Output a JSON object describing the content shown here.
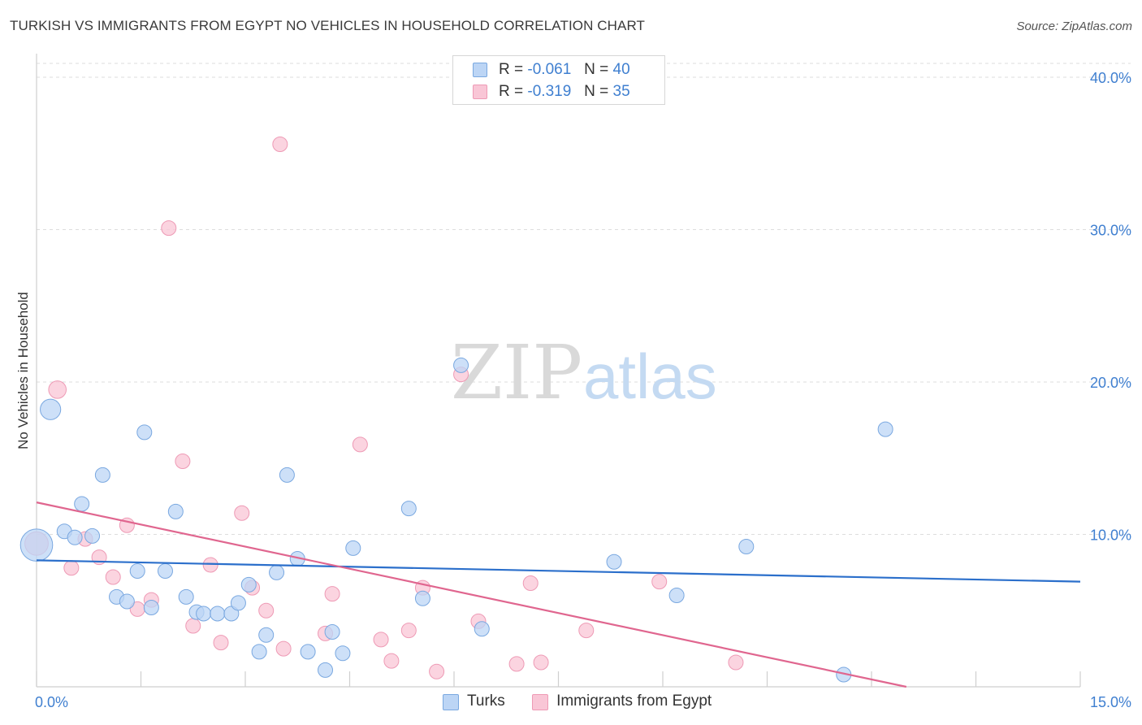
{
  "header": {
    "title": "TURKISH VS IMMIGRANTS FROM EGYPT NO VEHICLES IN HOUSEHOLD CORRELATION CHART",
    "source": "Source: ZipAtlas.com"
  },
  "watermark": {
    "zip": "ZIP",
    "atlas": "atlas"
  },
  "legend": {
    "r_label": "R =",
    "n_label": "N =",
    "entries": [
      {
        "r": "-0.061",
        "n": "40"
      },
      {
        "r": "-0.319",
        "n": "35"
      }
    ]
  },
  "colors": {
    "turks_fill": "#bcd5f5",
    "turks_stroke": "#7aa8e0",
    "turks_line": "#2b6fcb",
    "egypt_fill": "#f9c6d6",
    "egypt_stroke": "#ee9ab5",
    "egypt_line": "#e0668f",
    "tick_text": "#3f7fd0",
    "grid": "#dddddd"
  },
  "chart_data": {
    "type": "scatter",
    "title": "TURKISH VS IMMIGRANTS FROM EGYPT NO VEHICLES IN HOUSEHOLD CORRELATION CHART",
    "xlabel": "",
    "ylabel": "No Vehicles in Household",
    "xlim": [
      0,
      15
    ],
    "ylim": [
      0,
      40
    ],
    "x_tick_labels": [
      "0.0%",
      "15.0%"
    ],
    "y_ticks": [
      10,
      20,
      30,
      40
    ],
    "y_tick_labels": [
      "10.0%",
      "20.0%",
      "30.0%",
      "40.0%"
    ],
    "grid": true,
    "legend_position": "top-center",
    "series": [
      {
        "name": "Turks",
        "r": -0.061,
        "n": 40,
        "trend": [
          [
            0,
            8.3
          ],
          [
            15,
            6.9
          ]
        ],
        "points": [
          [
            0.0,
            9.3,
            2.2
          ],
          [
            0.2,
            18.2,
            1.4
          ],
          [
            0.4,
            10.2,
            1
          ],
          [
            0.55,
            9.8,
            1
          ],
          [
            0.65,
            12.0,
            1
          ],
          [
            0.8,
            9.9,
            1
          ],
          [
            0.95,
            13.9,
            1
          ],
          [
            1.15,
            5.9,
            1
          ],
          [
            1.3,
            5.6,
            1
          ],
          [
            1.45,
            7.6,
            1
          ],
          [
            1.55,
            16.7,
            1
          ],
          [
            1.65,
            5.2,
            1
          ],
          [
            1.85,
            7.6,
            1
          ],
          [
            2.0,
            11.5,
            1
          ],
          [
            2.15,
            5.9,
            1
          ],
          [
            2.3,
            4.9,
            1
          ],
          [
            2.4,
            4.8,
            1
          ],
          [
            2.6,
            4.8,
            1
          ],
          [
            2.8,
            4.8,
            1
          ],
          [
            2.9,
            5.5,
            1
          ],
          [
            3.05,
            6.7,
            1
          ],
          [
            3.2,
            2.3,
            1
          ],
          [
            3.3,
            3.4,
            1
          ],
          [
            3.45,
            7.5,
            1
          ],
          [
            3.6,
            13.9,
            1
          ],
          [
            3.75,
            8.4,
            1
          ],
          [
            3.9,
            2.3,
            1
          ],
          [
            4.15,
            1.1,
            1
          ],
          [
            4.25,
            3.6,
            1
          ],
          [
            4.4,
            2.2,
            1
          ],
          [
            4.55,
            9.1,
            1
          ],
          [
            5.35,
            11.7,
            1
          ],
          [
            5.55,
            5.8,
            1
          ],
          [
            6.1,
            21.1,
            1
          ],
          [
            6.4,
            3.8,
            1
          ],
          [
            8.3,
            8.2,
            1
          ],
          [
            9.2,
            6.0,
            1
          ],
          [
            10.2,
            9.2,
            1
          ],
          [
            12.2,
            16.9,
            1
          ],
          [
            11.6,
            0.8,
            1
          ]
        ]
      },
      {
        "name": "Immigrants from Egypt",
        "r": -0.319,
        "n": 35,
        "trend": [
          [
            0,
            12.1
          ],
          [
            12.5,
            0
          ]
        ],
        "points": [
          [
            0.0,
            9.4,
            1.6
          ],
          [
            0.3,
            19.5,
            1.2
          ],
          [
            0.5,
            7.8,
            1
          ],
          [
            0.7,
            9.7,
            1
          ],
          [
            0.9,
            8.5,
            1
          ],
          [
            1.1,
            7.2,
            1
          ],
          [
            1.3,
            10.6,
            1
          ],
          [
            1.45,
            5.1,
            1
          ],
          [
            1.65,
            5.7,
            1
          ],
          [
            1.9,
            30.1,
            1
          ],
          [
            2.1,
            14.8,
            1
          ],
          [
            2.25,
            4.0,
            1
          ],
          [
            2.5,
            8.0,
            1
          ],
          [
            2.65,
            2.9,
            1
          ],
          [
            2.95,
            11.4,
            1
          ],
          [
            3.1,
            6.5,
            1
          ],
          [
            3.3,
            5.0,
            1
          ],
          [
            3.55,
            2.5,
            1
          ],
          [
            3.5,
            35.6,
            1
          ],
          [
            4.15,
            3.5,
            1
          ],
          [
            4.25,
            6.1,
            1
          ],
          [
            4.65,
            15.9,
            1
          ],
          [
            4.95,
            3.1,
            1
          ],
          [
            5.1,
            1.7,
            1
          ],
          [
            5.35,
            3.7,
            1
          ],
          [
            5.55,
            6.5,
            1
          ],
          [
            5.75,
            1.0,
            1
          ],
          [
            6.1,
            20.5,
            1
          ],
          [
            6.35,
            4.3,
            1
          ],
          [
            6.9,
            1.5,
            1
          ],
          [
            7.1,
            6.8,
            1
          ],
          [
            7.25,
            1.6,
            1
          ],
          [
            7.9,
            3.7,
            1
          ],
          [
            8.95,
            6.9,
            1
          ],
          [
            10.05,
            1.6,
            1
          ]
        ]
      }
    ]
  }
}
